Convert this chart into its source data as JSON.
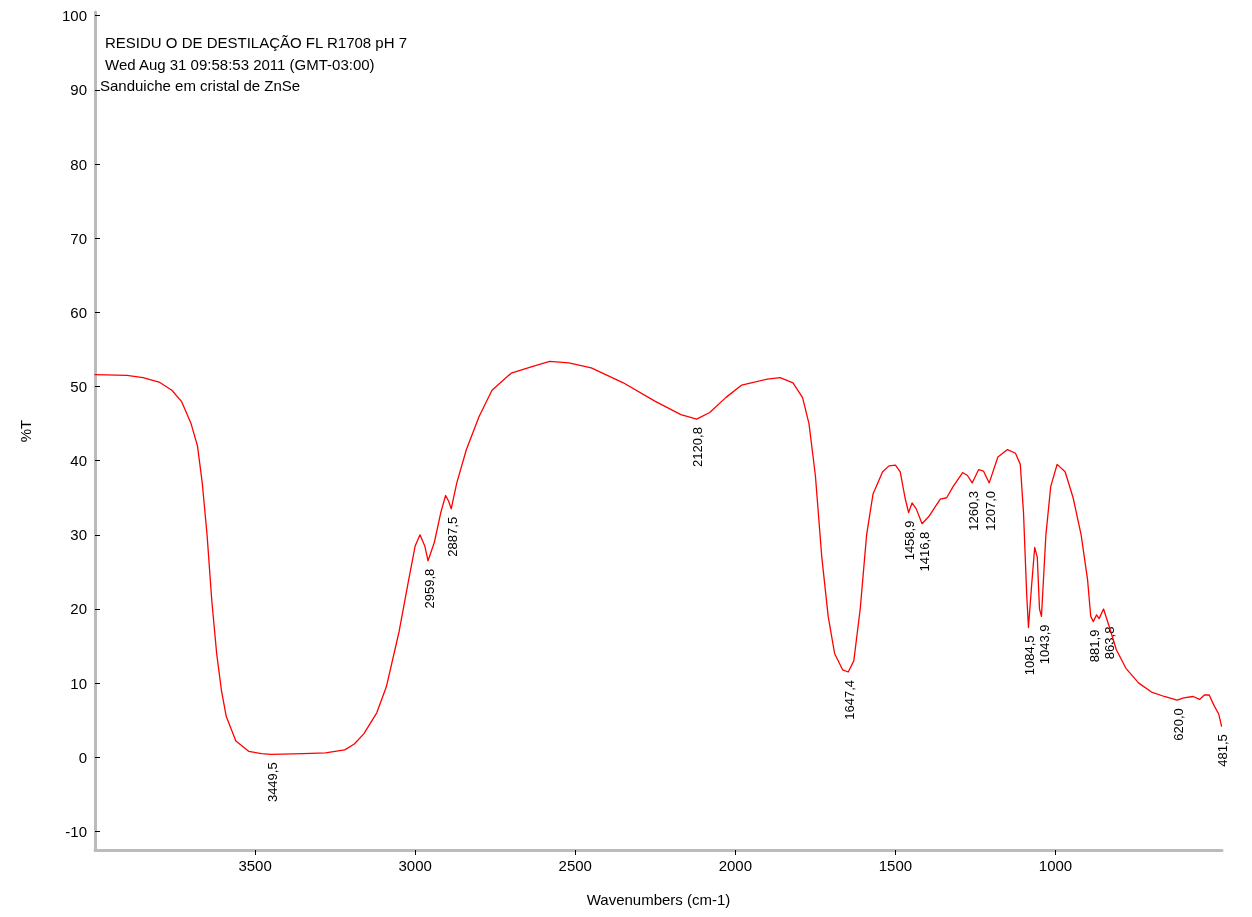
{
  "chart_data": {
    "type": "line",
    "title": "RESIDU O DE DESTILAÇÃO FL R1708 pH 7",
    "subtitle": "Wed Aug 31 09:58:53 2011 (GMT-03:00)",
    "xlabel": "Wavenumbers (cm-1)",
    "ylabel": "%T",
    "xlim": [
      4000,
      480
    ],
    "xticks": [
      3500,
      3000,
      2500,
      2000,
      1500,
      1000
    ],
    "ylim": [
      -12.5,
      100.5
    ],
    "yticks": [
      -10,
      0,
      10,
      20,
      30,
      40,
      50,
      60,
      70,
      80,
      90,
      100
    ],
    "grid": false,
    "marker": "none",
    "line_style": "solid",
    "x": [
      4000,
      3900,
      3850,
      3800,
      3760,
      3730,
      3700,
      3680,
      3665,
      3650,
      3635,
      3620,
      3605,
      3590,
      3560,
      3520,
      3480,
      3449.5,
      3350,
      3280,
      3220,
      3190,
      3160,
      3120,
      3090,
      3050,
      3020,
      3000,
      2985,
      2970,
      2959.8,
      2940,
      2920,
      2905,
      2895,
      2887.5,
      2870,
      2840,
      2800,
      2760,
      2700,
      2640,
      2580,
      2520,
      2450,
      2350,
      2250,
      2170,
      2120.8,
      2080,
      2030,
      1980,
      1900,
      1860,
      1820,
      1790,
      1770,
      1750,
      1730,
      1710,
      1690,
      1665,
      1647.4,
      1630,
      1610,
      1590,
      1570,
      1540,
      1520,
      1500,
      1485,
      1470,
      1458.9,
      1448,
      1435,
      1416.8,
      1395,
      1380,
      1360,
      1340,
      1320,
      1290,
      1275,
      1260.3,
      1240,
      1225,
      1207,
      1180,
      1150,
      1125,
      1110,
      1100,
      1090,
      1084.5,
      1075,
      1065,
      1057,
      1050,
      1043.9,
      1030,
      1015,
      995,
      970,
      945,
      920,
      900,
      890,
      881.9,
      872,
      863.8,
      850,
      835,
      810,
      780,
      740,
      700,
      660,
      620,
      600,
      570,
      550,
      535,
      520,
      505,
      490,
      481.5
    ],
    "series": [
      {
        "color": "#ff0000",
        "values": [
          51.6,
          51.5,
          51.2,
          50.6,
          49.5,
          48,
          45,
          42,
          37,
          30,
          21,
          14,
          9,
          5.5,
          2.2,
          0.8,
          0.5,
          0.4,
          0.5,
          0.6,
          1.0,
          1.8,
          3.2,
          6,
          9.5,
          17,
          24,
          28.5,
          30,
          28.5,
          26.5,
          29,
          33,
          35.3,
          34.5,
          33.5,
          37,
          41.5,
          46,
          49.5,
          51.8,
          52.6,
          53.4,
          53.2,
          52.5,
          50.5,
          48,
          46.2,
          45.6,
          46.5,
          48.5,
          50.2,
          51,
          51.2,
          50.5,
          48.5,
          45,
          38,
          27,
          19,
          14,
          11.8,
          11.5,
          13,
          20,
          30,
          35.5,
          38.5,
          39.3,
          39.4,
          38.5,
          35,
          33,
          34.3,
          33.5,
          31.5,
          32.5,
          33.5,
          34.8,
          35,
          36.5,
          38.4,
          38,
          37,
          38.8,
          38.6,
          37,
          40.5,
          41.5,
          41,
          39.5,
          33,
          22,
          17.5,
          23,
          28.3,
          27,
          20,
          19,
          30,
          36.5,
          39.5,
          38.5,
          35,
          30,
          24,
          19,
          18.3,
          19.2,
          18.7,
          20,
          18,
          14.5,
          12,
          10,
          8.8,
          8.2,
          7.7,
          8,
          8.2,
          7.8,
          8.4,
          8.4,
          7,
          5.8,
          4.2
        ]
      }
    ],
    "annotations": [
      "Sanduiche em cristal de ZnSe",
      {
        "text": "3449,5",
        "x": 3449.5,
        "y": 0.4
      },
      {
        "text": "2959,8",
        "x": 2959.8,
        "y": 26.5
      },
      {
        "text": "2887,5",
        "x": 2887.5,
        "y": 33.5
      },
      {
        "text": "2120,8",
        "x": 2120.8,
        "y": 45.6
      },
      {
        "text": "1647,4",
        "x": 1647.4,
        "y": 11.5
      },
      {
        "text": "1458,9",
        "x": 1458.9,
        "y": 33
      },
      {
        "text": "1416,8",
        "x": 1416.8,
        "y": 31.5
      },
      {
        "text": "1260,3",
        "x": 1260.3,
        "y": 37
      },
      {
        "text": "1207,0",
        "x": 1207,
        "y": 37
      },
      {
        "text": "1084,5",
        "x": 1084.5,
        "y": 17.5
      },
      {
        "text": "1043,9",
        "x": 1043.9,
        "y": 19
      },
      {
        "text": "881,9",
        "x": 881.9,
        "y": 18.3
      },
      {
        "text": "863,8",
        "x": 863.8,
        "y": 18.7
      },
      {
        "text": "620,0",
        "x": 620,
        "y": 7.7
      },
      {
        "text": "481,5",
        "x": 481.5,
        "y": 4.2
      }
    ]
  }
}
